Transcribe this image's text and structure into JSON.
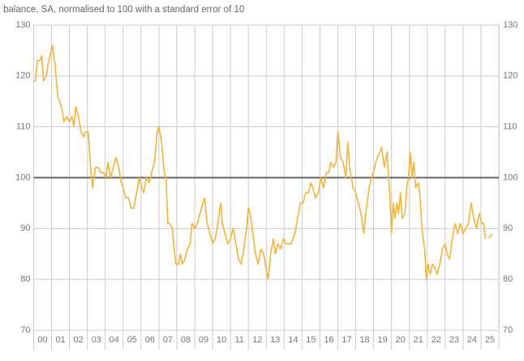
{
  "chart_data": {
    "type": "line",
    "title": "balance, SA, normalised to 100 with a standard error of 10",
    "color": "#f0b43a",
    "reference_line": 100,
    "grid": true,
    "xlim": [
      2000,
      2026
    ],
    "ylim": [
      70,
      130
    ],
    "yticks": [
      70,
      80,
      90,
      100,
      110,
      120,
      130
    ],
    "xticks": [
      {
        "value": 2000,
        "label": "00"
      },
      {
        "value": 2001,
        "label": "01"
      },
      {
        "value": 2002,
        "label": "02"
      },
      {
        "value": 2003,
        "label": "03"
      },
      {
        "value": 2004,
        "label": "04"
      },
      {
        "value": 2005,
        "label": "05"
      },
      {
        "value": 2006,
        "label": "06"
      },
      {
        "value": 2007,
        "label": "07"
      },
      {
        "value": 2008,
        "label": "08"
      },
      {
        "value": 2009,
        "label": "09"
      },
      {
        "value": 2010,
        "label": "10"
      },
      {
        "value": 2011,
        "label": "11"
      },
      {
        "value": 2012,
        "label": "12"
      },
      {
        "value": 2013,
        "label": "13"
      },
      {
        "value": 2014,
        "label": "14"
      },
      {
        "value": 2015,
        "label": "15"
      },
      {
        "value": 2016,
        "label": "16"
      },
      {
        "value": 2017,
        "label": "17"
      },
      {
        "value": 2018,
        "label": "18"
      },
      {
        "value": 2019,
        "label": "19"
      },
      {
        "value": 2020,
        "label": "20"
      },
      {
        "value": 2021,
        "label": "21"
      },
      {
        "value": 2022,
        "label": "22"
      },
      {
        "value": 2023,
        "label": "23"
      },
      {
        "value": 2024,
        "label": "24"
      },
      {
        "value": 2025,
        "label": "25"
      }
    ],
    "x": [
      2000.0,
      2000.1,
      2000.2,
      2000.35,
      2000.45,
      2000.55,
      2000.7,
      2000.85,
      2001.05,
      2001.2,
      2001.35,
      2001.55,
      2001.7,
      2001.85,
      2002.0,
      2002.15,
      2002.25,
      2002.35,
      2002.5,
      2002.65,
      2002.8,
      2002.9,
      2003.05,
      2003.2,
      2003.3,
      2003.45,
      2003.6,
      2003.75,
      2003.9,
      2004.05,
      2004.15,
      2004.3,
      2004.45,
      2004.6,
      2004.75,
      2004.9,
      2005.0,
      2005.15,
      2005.3,
      2005.45,
      2005.6,
      2005.75,
      2005.9,
      2006.05,
      2006.15,
      2006.3,
      2006.45,
      2006.6,
      2006.75,
      2006.9,
      2007.0,
      2007.15,
      2007.3,
      2007.4,
      2007.5,
      2007.6,
      2007.75,
      2007.85,
      2007.95,
      2008.1,
      2008.2,
      2008.3,
      2008.45,
      2008.6,
      2008.75,
      2008.85,
      2009.0,
      2009.15,
      2009.3,
      2009.45,
      2009.55,
      2009.7,
      2009.85,
      2010.0,
      2010.15,
      2010.3,
      2010.45,
      2010.55,
      2010.7,
      2010.85,
      2011.0,
      2011.15,
      2011.3,
      2011.45,
      2011.6,
      2011.75,
      2011.9,
      2012.0,
      2012.1,
      2012.25,
      2012.4,
      2012.55,
      2012.7,
      2012.85,
      2012.95,
      2013.1,
      2013.25,
      2013.4,
      2013.5,
      2013.65,
      2013.8,
      2013.95,
      2014.1,
      2014.25,
      2014.4,
      2014.6,
      2014.75,
      2014.9,
      2015.05,
      2015.2,
      2015.35,
      2015.5,
      2015.6,
      2015.75,
      2015.9,
      2016.05,
      2016.2,
      2016.35,
      2016.5,
      2016.6,
      2016.75,
      2016.9,
      2017.0,
      2017.15,
      2017.3,
      2017.45,
      2017.55,
      2017.7,
      2017.85,
      2018.0,
      2018.15,
      2018.3,
      2018.45,
      2018.6,
      2018.75,
      2018.9,
      2019.05,
      2019.2,
      2019.35,
      2019.45,
      2019.6,
      2019.75,
      2019.9,
      2020.0,
      2020.1,
      2020.2,
      2020.3,
      2020.4,
      2020.5,
      2020.6,
      2020.75,
      2020.85,
      2020.95,
      2021.05,
      2021.15,
      2021.25,
      2021.35,
      2021.5,
      2021.6,
      2021.7,
      2021.85,
      2021.95,
      2022.05,
      2022.15,
      2022.3,
      2022.45,
      2022.55,
      2022.7,
      2022.85,
      2023.0,
      2023.1,
      2023.25,
      2023.4,
      2023.55,
      2023.7,
      2023.85,
      2024.0,
      2024.15,
      2024.3,
      2024.45,
      2024.6,
      2024.75,
      2024.9,
      2025.05,
      2025.15,
      2025.25,
      2025.35,
      2025.45,
      2025.6
    ],
    "values": [
      119,
      119,
      123,
      123,
      124,
      119,
      120,
      123,
      126,
      122,
      116,
      114,
      111,
      112,
      111,
      112,
      110,
      114,
      112,
      109,
      108,
      109,
      109,
      101,
      98,
      102,
      102,
      101,
      101,
      100,
      103,
      100,
      102,
      104,
      102,
      99,
      98,
      96,
      96,
      94,
      94,
      97,
      100,
      98,
      97,
      100,
      99,
      101,
      103,
      109,
      110,
      107,
      101,
      100,
      91,
      91,
      90,
      86,
      83,
      83,
      85,
      83,
      84,
      86,
      87,
      91,
      90,
      91,
      93,
      95,
      96,
      91,
      89,
      87,
      88,
      91,
      95,
      91,
      89,
      87,
      88,
      90,
      87,
      84,
      83,
      86,
      90,
      94,
      93,
      89,
      85,
      83,
      86,
      85,
      83,
      80,
      85,
      88,
      85,
      87,
      86,
      88,
      87,
      87,
      87,
      89,
      92,
      95,
      95,
      97,
      97,
      99,
      98,
      96,
      97,
      100,
      98,
      101,
      101,
      103,
      102,
      103,
      109,
      104,
      103,
      100,
      107,
      101,
      98,
      97,
      95,
      93,
      89,
      94,
      98,
      100,
      102,
      104,
      105,
      106,
      102,
      105,
      97,
      89,
      95,
      92,
      95,
      93,
      97,
      92,
      93,
      98,
      100,
      105,
      100,
      103,
      98,
      99,
      96,
      90,
      86,
      80,
      83,
      81,
      83,
      82,
      81,
      83,
      86,
      87,
      85,
      84,
      88,
      91,
      89,
      91,
      89,
      90,
      91,
      95,
      92,
      90,
      93,
      91,
      91,
      88,
      null,
      88,
      89
    ]
  }
}
